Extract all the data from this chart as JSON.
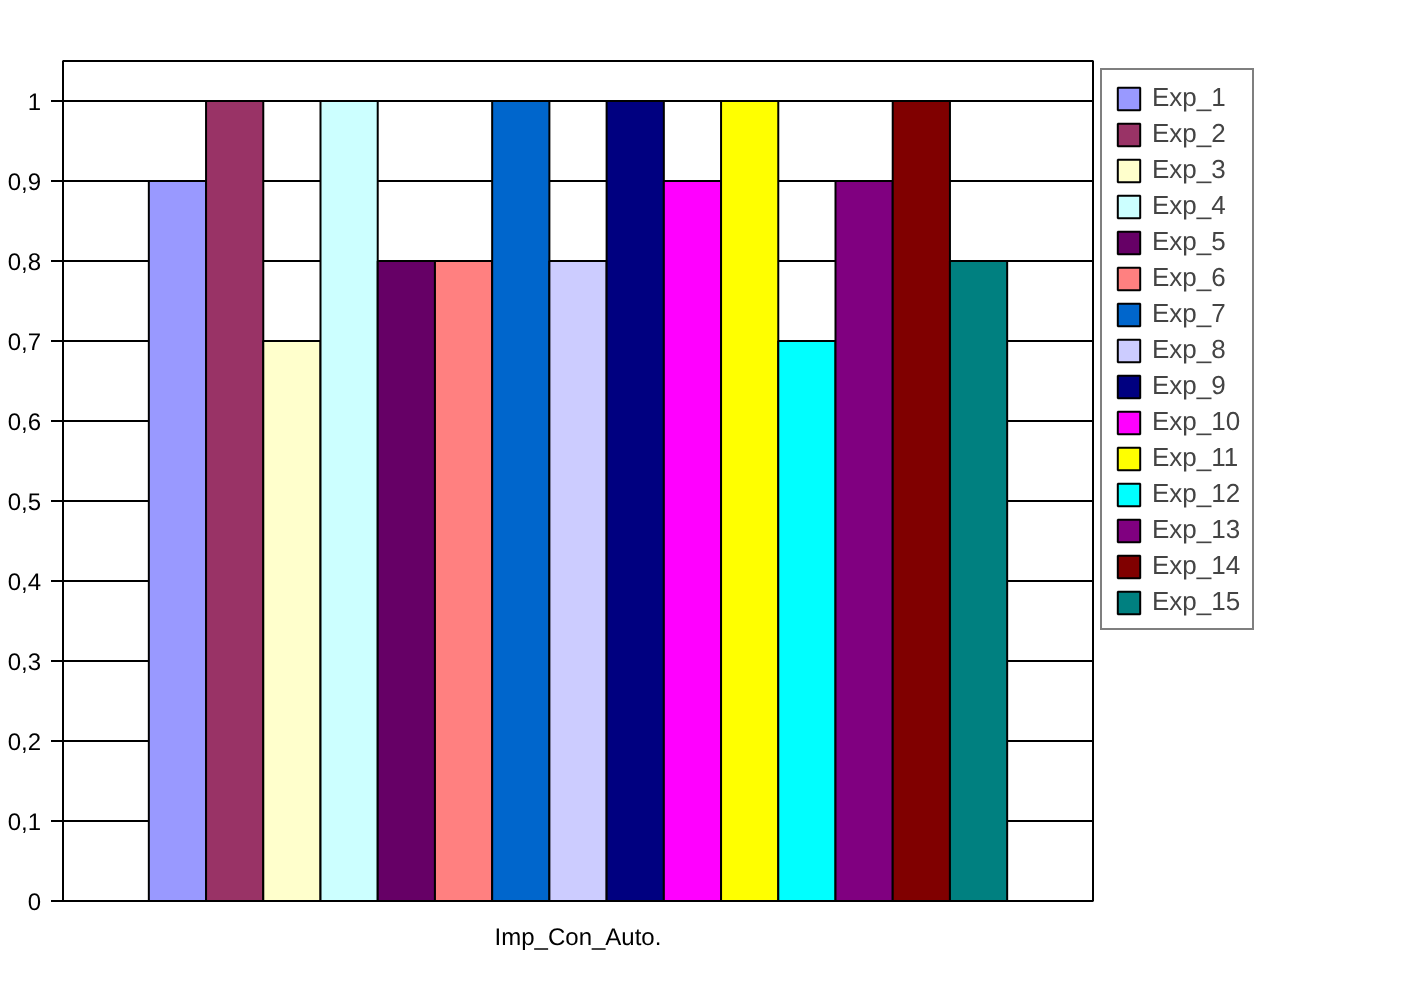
{
  "chart_data": {
    "type": "bar",
    "categories": [
      "Imp_Con_Auto."
    ],
    "series": [
      {
        "name": "Exp_1",
        "color": "#9999ff",
        "values": [
          0.9
        ]
      },
      {
        "name": "Exp_2",
        "color": "#993366",
        "values": [
          1
        ]
      },
      {
        "name": "Exp_3",
        "color": "#ffffcc",
        "values": [
          0.7
        ]
      },
      {
        "name": "Exp_4",
        "color": "#ccffff",
        "values": [
          1
        ]
      },
      {
        "name": "Exp_5",
        "color": "#660066",
        "values": [
          0.8
        ]
      },
      {
        "name": "Exp_6",
        "color": "#ff8080",
        "values": [
          0.8
        ]
      },
      {
        "name": "Exp_7",
        "color": "#0066cc",
        "values": [
          1
        ]
      },
      {
        "name": "Exp_8",
        "color": "#ccccff",
        "values": [
          0.8
        ]
      },
      {
        "name": "Exp_9",
        "color": "#000080",
        "values": [
          1
        ]
      },
      {
        "name": "Exp_10",
        "color": "#ff00ff",
        "values": [
          0.9
        ]
      },
      {
        "name": "Exp_11",
        "color": "#ffff00",
        "values": [
          1
        ]
      },
      {
        "name": "Exp_12",
        "color": "#00ffff",
        "values": [
          0.7
        ]
      },
      {
        "name": "Exp_13",
        "color": "#800080",
        "values": [
          0.9
        ]
      },
      {
        "name": "Exp_14",
        "color": "#800000",
        "values": [
          1
        ]
      },
      {
        "name": "Exp_15",
        "color": "#008080",
        "values": [
          0.8
        ]
      }
    ],
    "ylim": [
      0,
      1.05
    ],
    "yticks": [
      0,
      {
        "value": 0.1,
        "label": "0,1"
      },
      {
        "value": 0.2,
        "label": "0,2"
      },
      {
        "value": 0.3,
        "label": "0,3"
      },
      {
        "value": 0.4,
        "label": "0,4"
      },
      {
        "value": 0.5,
        "label": "0,5"
      },
      {
        "value": 0.6,
        "label": "0,6"
      },
      {
        "value": 0.7,
        "label": "0,7"
      },
      {
        "value": 0.8,
        "label": "0,8"
      },
      {
        "value": 0.9,
        "label": "0,9"
      },
      1
    ],
    "grid": "y",
    "legend": "right"
  }
}
